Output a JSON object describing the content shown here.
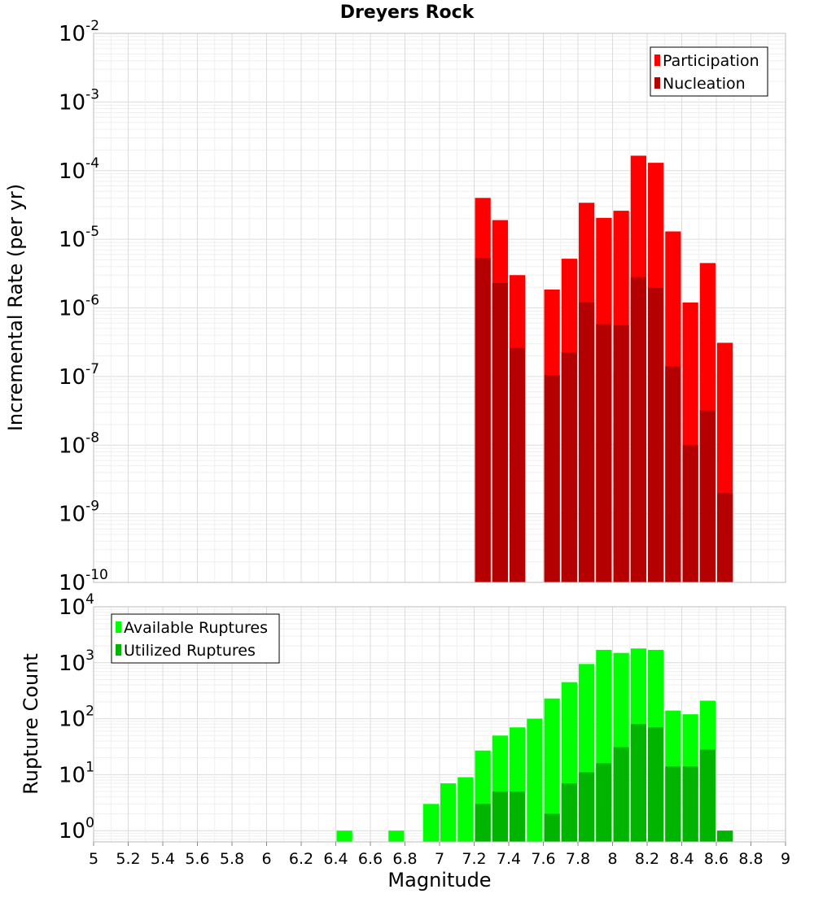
{
  "chart_data": [
    {
      "type": "bar",
      "title": "Dreyers Rock",
      "ylabel": "Incremental Rate (per yr)",
      "yscale": "log",
      "ylim": [
        1e-10,
        0.01
      ],
      "xlim": [
        5,
        9
      ],
      "grid": true,
      "legend_position": "top-right",
      "y_tick_exponents": [
        "-10",
        "-9",
        "-8",
        "-7",
        "-6",
        "-5",
        "-4",
        "-3",
        "-2"
      ],
      "x": [
        7.25,
        7.35,
        7.45,
        7.65,
        7.75,
        7.85,
        7.95,
        8.05,
        8.15,
        8.25,
        8.35,
        8.45,
        8.55,
        8.65
      ],
      "series": [
        {
          "name": "Participation",
          "color": "#ff0000",
          "values": [
            4e-05,
            1.9e-05,
            3e-06,
            1.85e-06,
            5.2e-06,
            3.4e-05,
            2.05e-05,
            2.6e-05,
            0.000165,
            0.00013,
            1.3e-05,
            1.2e-06,
            4.5e-06,
            3.1e-07
          ]
        },
        {
          "name": "Nucleation",
          "color": "#b40000",
          "values": [
            5.3e-06,
            2.3e-06,
            2.6e-07,
            1.05e-07,
            2.25e-07,
            1.2e-06,
            5.8e-07,
            5.6e-07,
            2.8e-06,
            1.95e-06,
            1.4e-07,
            1e-08,
            3.2e-08,
            2e-09
          ]
        }
      ]
    },
    {
      "type": "bar",
      "xlabel": "Magnitude",
      "ylabel": "Rupture Count",
      "yscale": "log",
      "ylim": [
        0.63,
        10000
      ],
      "xlim": [
        5,
        9
      ],
      "grid": true,
      "legend_position": "top-left",
      "y_tick_exponents": [
        "0",
        "1",
        "2",
        "3",
        "4"
      ],
      "x_ticks": [
        "5",
        "5.2",
        "5.4",
        "5.6",
        "5.8",
        "6",
        "6.2",
        "6.4",
        "6.6",
        "6.8",
        "7",
        "7.2",
        "7.4",
        "7.6",
        "7.8",
        "8",
        "8.2",
        "8.4",
        "8.6",
        "8.8",
        "9"
      ],
      "x": [
        6.45,
        6.75,
        6.95,
        7.05,
        7.15,
        7.25,
        7.35,
        7.45,
        7.55,
        7.65,
        7.75,
        7.85,
        7.95,
        8.05,
        8.15,
        8.25,
        8.35,
        8.45,
        8.55,
        8.65
      ],
      "series": [
        {
          "name": "Available Ruptures",
          "color": "#00ff00",
          "values": [
            1,
            1,
            3,
            7,
            9,
            27,
            50,
            70,
            100,
            230,
            450,
            950,
            1700,
            1500,
            1800,
            1700,
            140,
            120,
            210,
            1
          ]
        },
        {
          "name": "Utilized Ruptures",
          "color": "#00b400",
          "values": [
            0,
            0,
            0,
            0,
            0,
            3,
            5,
            5,
            0,
            2,
            7,
            11,
            16,
            31,
            80,
            70,
            14,
            14,
            28,
            1
          ]
        }
      ]
    }
  ]
}
